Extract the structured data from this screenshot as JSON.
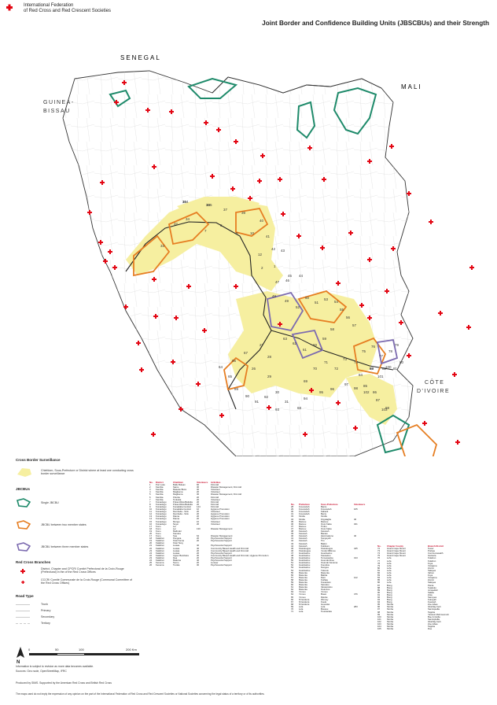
{
  "header": {
    "org_line1": "International Federation",
    "org_line2": "of Red Cross and Red Crescent Societies",
    "title": "Joint Border and Confidence Building Units (JBSCBUs) and their Strength"
  },
  "countries": {
    "senegal": "SENEGAL",
    "mali": "MALI",
    "guinea_bissau_1": "GUINEA-",
    "guinea_bissau_2": "BISSAU",
    "cote_1": "CÔTE",
    "cote_2": "D'IVOIRE"
  },
  "map_labels": [
    "35",
    "36",
    "37",
    "34",
    "39",
    "40",
    "32",
    "33",
    "7",
    "8",
    "9",
    "10",
    "41",
    "12",
    "42",
    "1",
    "2",
    "43",
    "45",
    "44",
    "46",
    "47",
    "48",
    "49",
    "52",
    "50",
    "51",
    "53",
    "54",
    "55",
    "56",
    "57",
    "58",
    "59",
    "60",
    "61",
    "62",
    "63",
    "64",
    "65",
    "66",
    "67",
    "26",
    "27",
    "28",
    "29",
    "30",
    "31",
    "68",
    "69",
    "70",
    "71",
    "72",
    "73",
    "74",
    "75",
    "76",
    "77",
    "78",
    "79",
    "80",
    "81",
    "82",
    "83",
    "84",
    "85",
    "86",
    "87",
    "88",
    "89",
    "90",
    "91",
    "92",
    "93",
    "94",
    "95",
    "96",
    "97",
    "98",
    "99",
    "100",
    "101",
    "102",
    "103",
    "104",
    "105"
  ],
  "legend": {
    "cross_border_title": "Cross Border Surveillance",
    "cross_border_desc": "Chiefdom, Sous-Prefecture or District where at least one conducting cross border surveillance",
    "jbcbu_title": "JBCBUs",
    "single": "Single JBCBU",
    "two_members": "JBCBU between two member states",
    "three_members": "JBCBU between three member states",
    "branches_title": "Red Cross Branches",
    "branch_1": "District, Chapter and CPCR/ Comité Préfectoral de la Croix-Rouge (Préfectural) in the of the Red Cross Offices",
    "branch_2": "CCCR/ Comité Communale de la Croix-Rouge (Communal Committee of the Red Cross Offices)",
    "road_title": "Road Type",
    "road_1": "Trunk",
    "road_2": "Primary",
    "road_3": "Secondary",
    "road_4": "Tertiary"
  },
  "colors": {
    "yellow": "#f6efa0",
    "teal": "#1e8a6a",
    "orange": "#e67e22",
    "purple": "#7c6bb0",
    "red": "#e30613",
    "border": "#222222"
  },
  "scale": {
    "s0": "0",
    "s1": "50",
    "s2": "100",
    "s3": "200 Km",
    "north": "N"
  },
  "footer": {
    "info1": "Information is subject to revision as more data becomes available.",
    "info2": "Sources: Geo node, OpenStreetMap, IFRC",
    "produced": "Produced by SIMS. Supported by the American Red Cross and British Red Cross",
    "disclaimer": "The maps used do not imply the expression of any opinion on the part of the International Federation of Red Cross and Red Crescent Societies or National Societies concerning the legal status of a territory or of its authorities."
  },
  "table1": {
    "headers": [
      "No.",
      "District",
      "Chiefdom",
      "Volunteers",
      "Activities"
    ],
    "rows": [
      [
        "1",
        "Port Loko",
        "Bullu Buloan",
        "60",
        "First Aid"
      ],
      [
        "2",
        "Kambia",
        "Samu",
        "30",
        "Disaster Management, First Aid"
      ],
      [
        "3",
        "Kambia",
        "Masetie Buza",
        "30",
        "Volunteer"
      ],
      [
        "4",
        "Kambia",
        "Magbema",
        "20",
        "Volunteer"
      ],
      [
        "5",
        "Kambia",
        "Magbema",
        "30",
        "Disaster Management, First Aid"
      ],
      [
        "6",
        "Kambia",
        "Khonta",
        "20",
        "First Aid"
      ],
      [
        "7",
        "Kambia",
        "Tonkolia",
        "20",
        "Volunteer"
      ],
      [
        "7",
        "Koinadugu",
        "Pulua Wara Bafodia",
        "20",
        "First Aid"
      ],
      [
        "8",
        "Koinadugu",
        "Pulua Wara Bafodia",
        "20",
        "First Aid"
      ],
      [
        "9",
        "Koinadugu",
        "Konadaba Central",
        "144",
        "First Aid"
      ],
      [
        "10",
        "Koinadugu",
        "Konadaba Central",
        "10",
        "Hygiene Promotion"
      ],
      [
        "11",
        "Koinadugu",
        "Dembelia - Sink",
        "20",
        "Volunteer"
      ],
      [
        "12",
        "Koinadugu",
        "Dembelia - Sink",
        "20",
        "Hygiene Promotion"
      ],
      [
        "13",
        "Koinadugu",
        "Diama",
        "20",
        "Hygiene Promotion"
      ],
      [
        "14",
        "Koinadugu",
        "Diama",
        "20",
        "Hygiene Promotion"
      ],
      [
        "15",
        "Koinadugu",
        "Mongo",
        "10",
        "Volunteer"
      ],
      [
        "16",
        "Koinadugu",
        "Neya",
        "20",
        "Volunteer"
      ],
      [
        "17",
        "Kono",
        "Lei",
        "",
        ""
      ],
      [
        "18",
        "Kono",
        "Lei",
        "130",
        "Disaster Management"
      ],
      [
        "19",
        "Kono",
        "Mafindor",
        "",
        ""
      ],
      [
        "20",
        "Kono",
        "Kamara",
        "",
        ""
      ],
      [
        "17",
        "Kono",
        "Soa",
        "64",
        "Disaster Management"
      ],
      [
        "18",
        "Kailahun",
        "Penguia",
        "20",
        "Psychosocial Support"
      ],
      [
        "19",
        "Kailahun",
        "Kissi Kama",
        "20",
        "Psychosocial Support"
      ],
      [
        "20",
        "Kailahun",
        "Kissi Teng",
        "",
        ""
      ],
      [
        "21",
        "Kailahun",
        "Luawa",
        "40",
        "Psychosocial Support"
      ],
      [
        "22",
        "Kailahun",
        "Luawa",
        "40",
        "Community Based Health and First Aid"
      ],
      [
        "23",
        "Kailahun",
        "Luawa",
        "20",
        "Community Based Health and First Aid"
      ],
      [
        "24",
        "Kailahun",
        "Luawa",
        "20",
        "Psychosocial Support"
      ],
      [
        "22",
        "Kailahun",
        "Upper Bambara",
        "30",
        "Community Based Health and First Aid, Hygiene Promotion"
      ],
      [
        "23",
        "Kailahun",
        "Dea",
        "20",
        "Psychosocial Support"
      ],
      [
        "24",
        "Kailahun",
        "Malema",
        "40",
        "Psychosocial Support"
      ],
      [
        "25",
        "Kenema",
        "Nomo",
        "20",
        "Lunteer"
      ],
      [
        "26",
        "Kenema",
        "Tunkia",
        "30",
        "Psychosocial Support"
      ]
    ]
  },
  "table2": {
    "headers": [
      "No.",
      "Prefecture",
      "Sous-Prefecture",
      "Volunteers"
    ],
    "rows": [
      [
        "28",
        "Forecariah",
        "Bantu",
        ""
      ],
      [
        "29",
        "Forecariah",
        "Forecariah",
        "165"
      ],
      [
        "30",
        "Forecariah",
        "Kaback",
        ""
      ],
      [
        "31",
        "Forecariah",
        "Benty",
        ""
      ],
      [
        "33",
        "Kindia",
        "Kindia",
        ""
      ],
      [
        "34",
        "Kindia",
        "Friguiagbe",
        "40"
      ],
      [
        "35",
        "Mamou",
        "Mamou",
        ""
      ],
      [
        "36",
        "Mamou",
        "Ouré Kaba",
        "321"
      ],
      [
        "37",
        "Mamou",
        "Timbo",
        ""
      ],
      [
        "37",
        "Mamou",
        "Ouré Kaba",
        ""
      ],
      [
        "38",
        "Faranah",
        "Faranah",
        ""
      ],
      [
        "39",
        "Faranah",
        "Banian",
        ""
      ],
      [
        "40",
        "Faranah",
        "Hérémakono",
        "40"
      ],
      [
        "41",
        "Faranah",
        "Songoyah",
        ""
      ],
      [
        "42",
        "Faranah",
        "Tiro",
        ""
      ],
      [
        "43",
        "Faranah",
        "Bailon",
        ""
      ],
      [
        "44",
        "Faranah",
        "Kobikoro",
        ""
      ],
      [
        "45",
        "Kissidougou",
        "Kissidougou",
        "445"
      ],
      [
        "46",
        "Kissidougou",
        "Yendé Millimou",
        ""
      ],
      [
        "47",
        "Guéckédou",
        "Gueckedou",
        ""
      ],
      [
        "48",
        "Guéckédou",
        "Kassadou",
        ""
      ],
      [
        "49",
        "Guéckédou",
        "Temessadou",
        "313"
      ],
      [
        "50",
        "Guéckédou",
        "Guendembou",
        ""
      ],
      [
        "51",
        "Guéckédou",
        "Ouéndé Kénéma",
        ""
      ],
      [
        "52",
        "Guéckédou",
        "Koundou",
        ""
      ],
      [
        "53",
        "Guéckédou",
        "Nongoa",
        ""
      ],
      [
        "54",
        "Guéckédou",
        "Tékoulo",
        ""
      ],
      [
        "55",
        "Macenta",
        "Macenta",
        ""
      ],
      [
        "56",
        "Macenta",
        "Balizia",
        ""
      ],
      [
        "57",
        "Macenta",
        "Daro",
        "122"
      ],
      [
        "58",
        "Macenta",
        "Koïfata",
        ""
      ],
      [
        "59",
        "Macenta",
        "Kouankan",
        ""
      ],
      [
        "60",
        "Macenta",
        "Sérédou",
        ""
      ],
      [
        "61",
        "Macenta",
        "Vassérédou",
        ""
      ],
      [
        "62",
        "Macenta",
        "Ouénzou",
        ""
      ],
      [
        "63",
        "Yomou",
        "Yomou",
        ""
      ],
      [
        "64",
        "Yomou",
        "Bowé",
        "476"
      ],
      [
        "65",
        "Yomou",
        "Diécké",
        ""
      ],
      [
        "66",
        "N'zérékoré",
        "Womey",
        ""
      ],
      [
        "67",
        "N'zérékoré",
        "Koulé",
        ""
      ],
      [
        "68",
        "N'zérékoré",
        "Gouécké",
        ""
      ],
      [
        "69",
        "Lola",
        "Lola",
        "283"
      ],
      [
        "70",
        "Lola",
        "Bossou",
        ""
      ],
      [
        "71",
        "Lola",
        "Tounkarata",
        ""
      ]
    ]
  },
  "table3": {
    "headers": [
      "No.",
      "Chapter County",
      "Branch District"
    ],
    "rows": [
      [
        "72",
        "Grand Cape Mount",
        "Tewor"
      ],
      [
        "73",
        "Grand Cape Mount",
        "Porkpa"
      ],
      [
        "74",
        "Grand Cape Mount",
        "Commonwealth"
      ],
      [
        "75",
        "Grand Cape Mount",
        "Garwula"
      ],
      [
        "76",
        "Lofa",
        "Kolahun"
      ],
      [
        "77",
        "Lofa",
        "Kolahun"
      ],
      [
        "78",
        "Lofa",
        "Foya"
      ],
      [
        "79",
        "Lofa",
        "Voinjama"
      ],
      [
        "80",
        "Lofa",
        "Zorzor"
      ],
      [
        "81",
        "Lofa",
        "Salayea"
      ],
      [
        "82",
        "Lofa",
        "Vahun"
      ],
      [
        "83",
        "Lofa",
        "Foya"
      ],
      [
        "84",
        "Lofa",
        "Voinjama"
      ],
      [
        "85",
        "Lofa",
        "Zorzor"
      ],
      [
        "86",
        "Lofa",
        "Salayea"
      ],
      [
        "87",
        "Bong",
        "Panta"
      ],
      [
        "88",
        "Bong",
        "Suakoko"
      ],
      [
        "89",
        "Bong",
        "Jorquelleh"
      ],
      [
        "90",
        "Bong",
        "Salala"
      ],
      [
        "91",
        "Bong",
        "Zota"
      ],
      [
        "92",
        "Bong",
        "Sanoyea"
      ],
      [
        "93",
        "Bong",
        "Kokoyah"
      ],
      [
        "94",
        "Bong",
        "Fuamah"
      ],
      [
        "95",
        "Nimba",
        "Zoe-Gbao"
      ],
      [
        "96",
        "Nimba",
        "Gbehlay-Geh"
      ],
      [
        "97",
        "Nimba",
        "Sanniquellie"
      ],
      [
        "98",
        "Nimba",
        "Tappita"
      ],
      [
        "99",
        "Nimba",
        "Yarwein Mehnsonnoh"
      ],
      [
        "100",
        "Nimba",
        "Boe & Quilla"
      ],
      [
        "101",
        "Nimba",
        "Sanniquellie"
      ],
      [
        "102",
        "Nimba",
        "Gbehlay-Geh"
      ],
      [
        "103",
        "Nimba",
        "Zoe-Gbao"
      ],
      [
        "104",
        "Nimba",
        "Tappita"
      ],
      [
        "105",
        "Nimba",
        "Doe"
      ]
    ]
  }
}
